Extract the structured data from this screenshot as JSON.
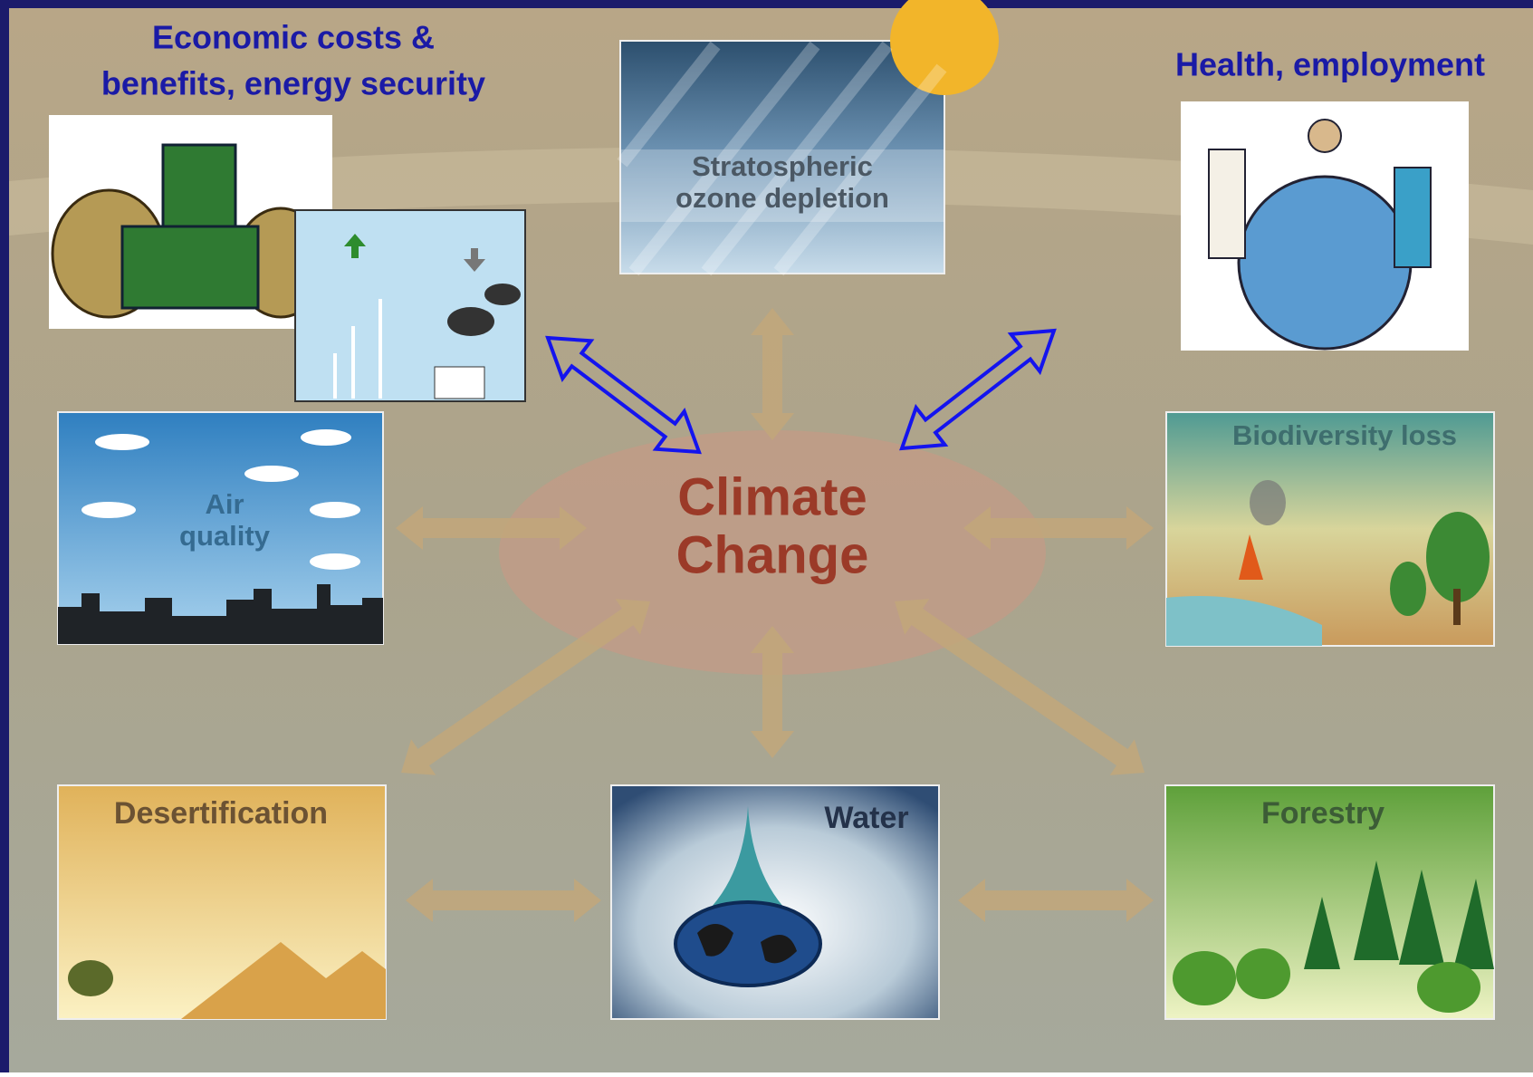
{
  "economic_label": [
    "Economic costs &",
    "benefits, energy security"
  ],
  "health_label": "Health, employment",
  "center": [
    "Climate",
    "Change"
  ],
  "panels": {
    "ozone": [
      "Stratospheric",
      "ozone depletion"
    ],
    "air": [
      "Air",
      "quality"
    ],
    "biodiversity": "Biodiversity loss",
    "desertification": "Desertification",
    "water": "Water",
    "forestry": "Forestry"
  }
}
